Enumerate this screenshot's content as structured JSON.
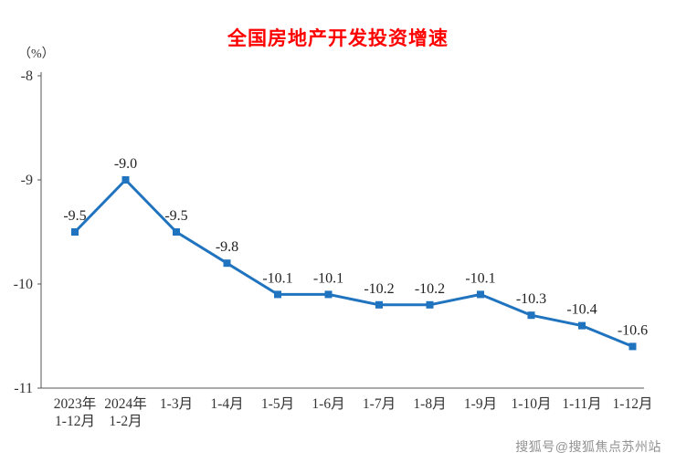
{
  "page": {
    "background": "#ffffff"
  },
  "chart_data": {
    "type": "line",
    "title": "全国房地产开发投资增速",
    "ylabel": "（%）",
    "categories": [
      "2023年\n1-12月",
      "2024年\n1-2月",
      "1-3月",
      "1-4月",
      "1-5月",
      "1-6月",
      "1-7月",
      "1-8月",
      "1-9月",
      "1-10月",
      "1-11月",
      "1-12月"
    ],
    "values": [
      -9.5,
      -9.0,
      -9.5,
      -9.8,
      -10.1,
      -10.1,
      -10.2,
      -10.2,
      -10.1,
      -10.3,
      -10.4,
      -10.6
    ],
    "data_labels": [
      "-9.5",
      "-9.0",
      "-9.5",
      "-9.8",
      "-10.1",
      "-10.1",
      "-10.2",
      "-10.2",
      "-10.1",
      "-10.3",
      "-10.4",
      "-10.6"
    ],
    "ylim": [
      -11,
      -8
    ],
    "yticks": [
      -8,
      -9,
      -10,
      -11
    ],
    "grid": false,
    "legend": "none",
    "line_color": "#2073be",
    "marker": "square",
    "title_color": "#fe0000",
    "axis_color": "#555555",
    "label_color": "#222222"
  },
  "watermark": {
    "text": "搜狐号@搜狐焦点苏州站"
  }
}
